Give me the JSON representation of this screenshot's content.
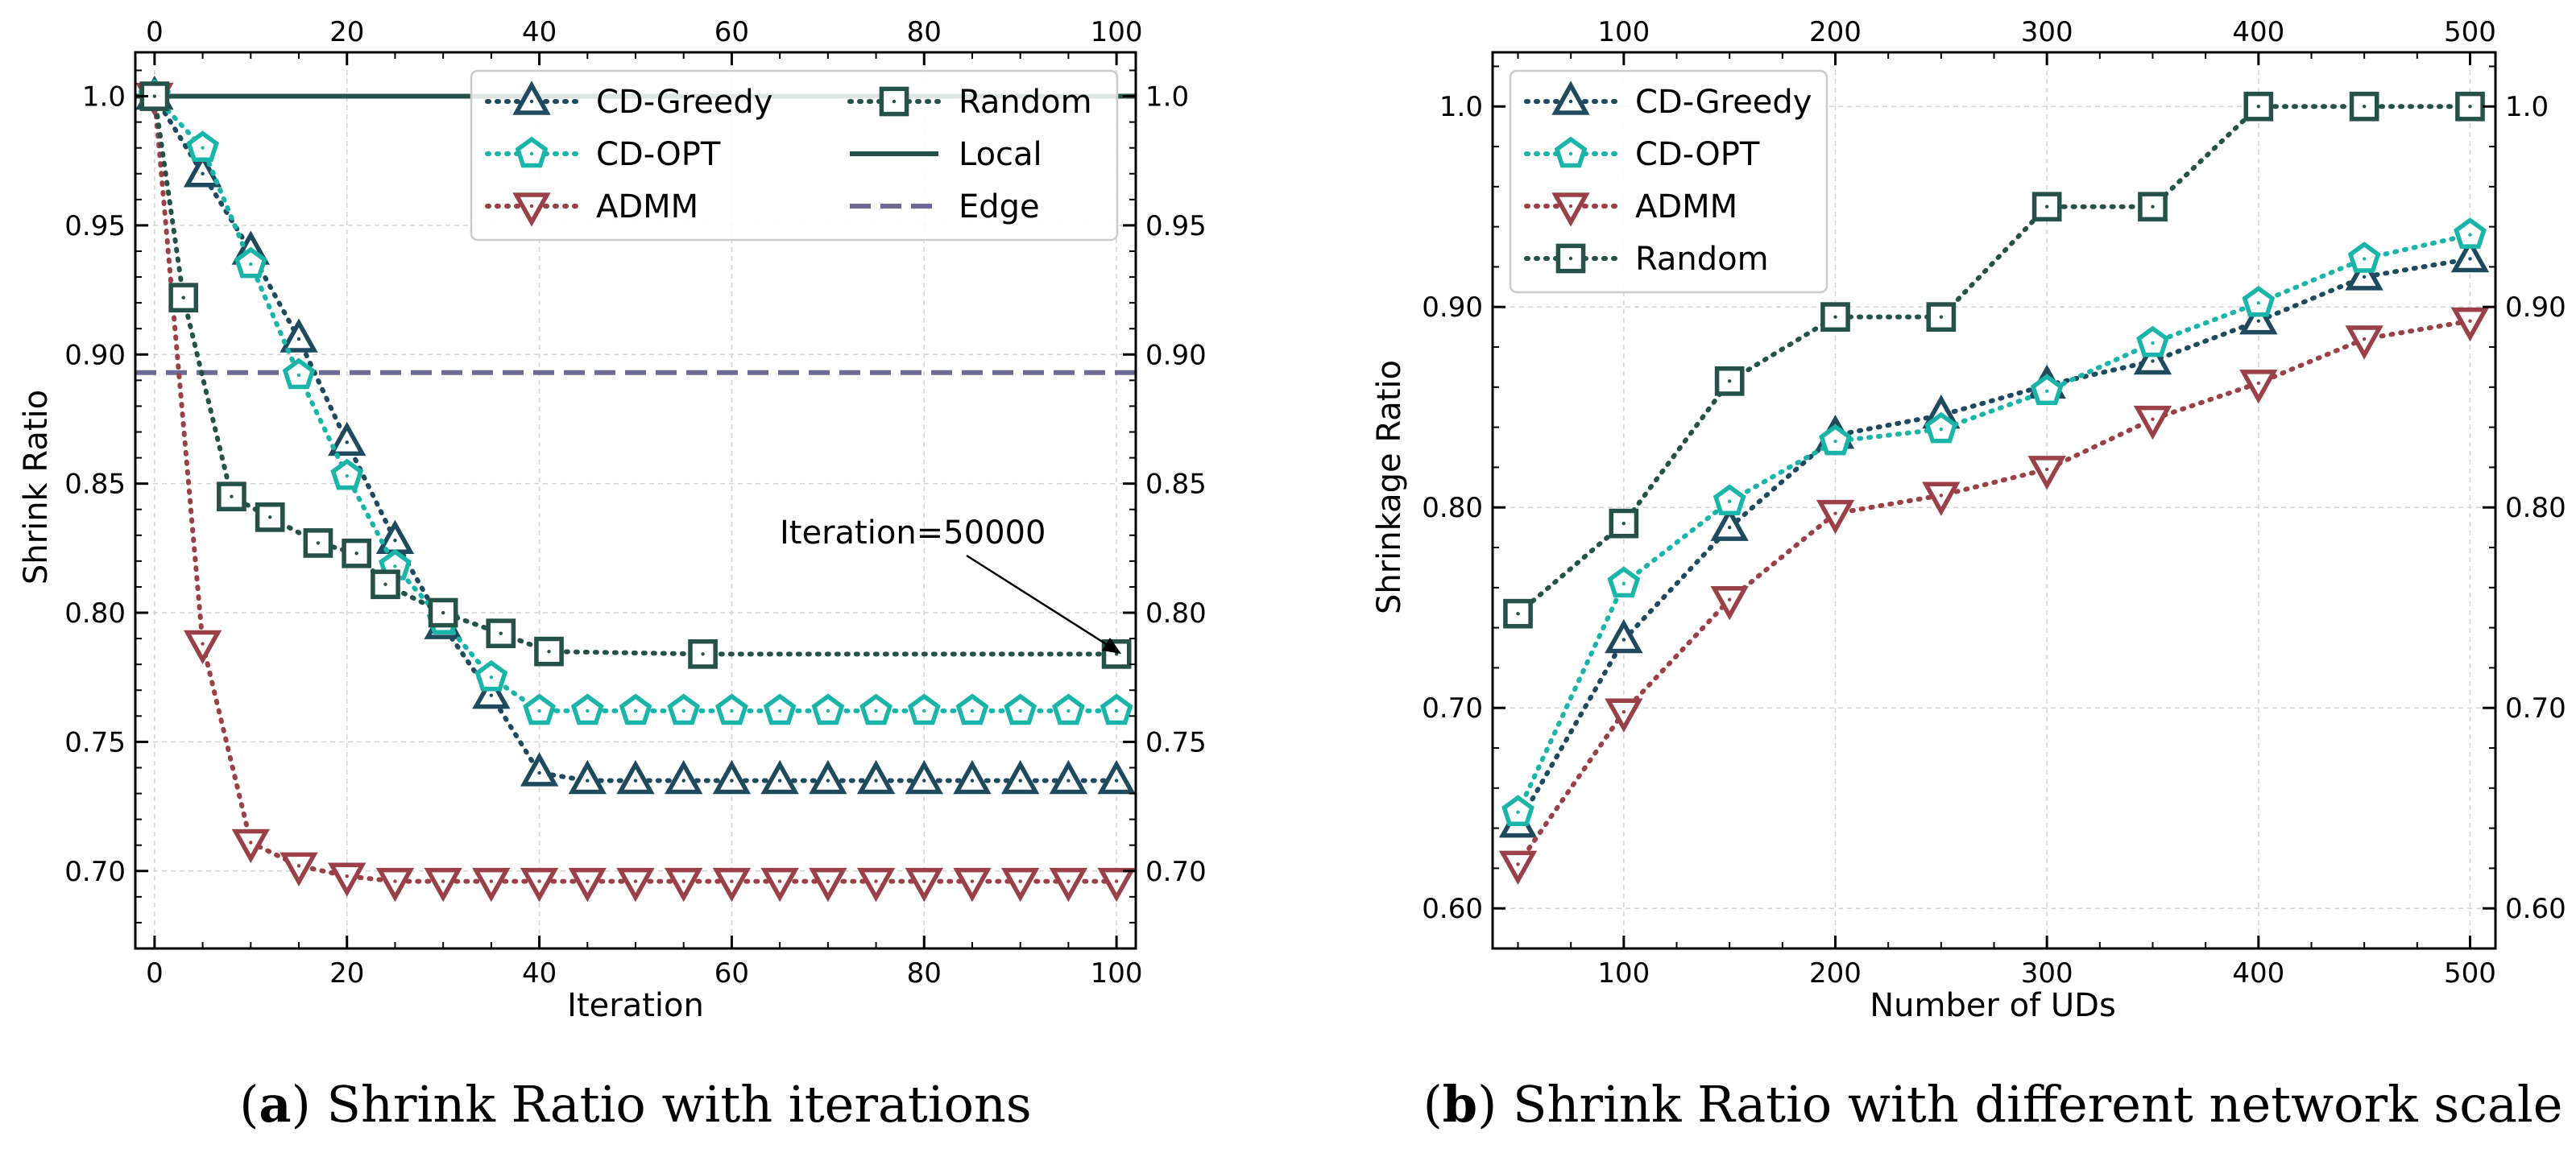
{
  "colors": {
    "cd_greedy": "#1f4a5e",
    "cd_opt": "#1ab5a8",
    "admm": "#9a4048",
    "random": "#265148",
    "local": "#265148",
    "edge": "#6d6a94"
  },
  "chart_data": [
    {
      "type": "line",
      "caption_letter": "a",
      "caption_text": "Shrink Ratio with iterations",
      "xlabel": "Iteration",
      "ylabel": "Shrink Ratio",
      "xlim": [
        -2,
        102
      ],
      "ylim": [
        0.67,
        1.017
      ],
      "xticks": [
        "0",
        "20",
        "40",
        "60",
        "80",
        "100"
      ],
      "xtick_values": [
        0,
        20,
        40,
        60,
        80,
        100
      ],
      "yticks": [
        "0.70",
        "0.75",
        "0.80",
        "0.85",
        "0.90",
        "0.95",
        "1.0"
      ],
      "ytick_values": [
        0.7,
        0.75,
        0.8,
        0.85,
        0.9,
        0.95,
        1.0
      ],
      "grid": true,
      "legend": "top-right",
      "series": [
        {
          "name": "CD-Greedy",
          "marker": "triangle-up",
          "color": "#1f4a5e",
          "x": [
            0,
            5,
            10,
            15,
            20,
            25,
            30,
            35,
            40,
            45,
            50,
            55,
            60,
            65,
            70,
            75,
            80,
            85,
            90,
            95,
            100
          ],
          "values": [
            1.0,
            0.97,
            0.94,
            0.906,
            0.866,
            0.828,
            0.795,
            0.768,
            0.738,
            0.735,
            0.735,
            0.735,
            0.735,
            0.735,
            0.735,
            0.735,
            0.735,
            0.735,
            0.735,
            0.735,
            0.735
          ]
        },
        {
          "name": "CD-OPT",
          "marker": "pentagon",
          "color": "#1ab5a8",
          "x": [
            0,
            5,
            10,
            15,
            20,
            25,
            30,
            35,
            40,
            45,
            50,
            55,
            60,
            65,
            70,
            75,
            80,
            85,
            90,
            95,
            100
          ],
          "values": [
            1.0,
            0.98,
            0.935,
            0.892,
            0.853,
            0.818,
            0.797,
            0.775,
            0.762,
            0.762,
            0.762,
            0.762,
            0.762,
            0.762,
            0.762,
            0.762,
            0.762,
            0.762,
            0.762,
            0.762,
            0.762
          ]
        },
        {
          "name": "ADMM",
          "marker": "triangle-down",
          "color": "#9a4048",
          "x": [
            0,
            5,
            10,
            15,
            20,
            25,
            30,
            35,
            40,
            45,
            50,
            55,
            60,
            65,
            70,
            75,
            80,
            85,
            90,
            95,
            100
          ],
          "values": [
            1.0,
            0.788,
            0.711,
            0.702,
            0.698,
            0.696,
            0.696,
            0.696,
            0.696,
            0.696,
            0.696,
            0.696,
            0.696,
            0.696,
            0.696,
            0.696,
            0.696,
            0.696,
            0.696,
            0.696,
            0.696
          ]
        },
        {
          "name": "Random",
          "marker": "square",
          "color": "#265148",
          "x": [
            0,
            3,
            8,
            12,
            17,
            21,
            24,
            30,
            36,
            41,
            57,
            100
          ],
          "values": [
            1.0,
            0.922,
            0.845,
            0.837,
            0.827,
            0.823,
            0.811,
            0.8,
            0.792,
            0.785,
            0.784,
            0.784
          ]
        }
      ],
      "reference_lines": [
        {
          "name": "Local",
          "value": 1.0,
          "style": "solid",
          "color": "#265148"
        },
        {
          "name": "Edge",
          "value": 0.893,
          "style": "dashed",
          "color": "#6d6a94"
        }
      ],
      "annotation": {
        "text": "Iteration=50000",
        "x": 100,
        "y": 0.784
      }
    },
    {
      "type": "line",
      "caption_letter": "b",
      "caption_text": "Shrink Ratio with different network scale",
      "xlabel": "Number of UDs",
      "ylabel": "Shrinkage Ratio",
      "xlim": [
        38,
        512
      ],
      "ylim": [
        0.58,
        1.027
      ],
      "xticks": [
        "100",
        "200",
        "300",
        "400",
        "500"
      ],
      "xtick_values": [
        100,
        200,
        300,
        400,
        500
      ],
      "yticks": [
        "0.60",
        "0.70",
        "0.80",
        "0.90",
        "1.0"
      ],
      "ytick_values": [
        0.6,
        0.7,
        0.8,
        0.9,
        1.0
      ],
      "grid": true,
      "legend": "top-left",
      "series": [
        {
          "name": "CD-Greedy",
          "marker": "triangle-up",
          "color": "#1f4a5e",
          "x": [
            50,
            100,
            150,
            200,
            250,
            300,
            350,
            400,
            450,
            500
          ],
          "values": [
            0.642,
            0.734,
            0.79,
            0.836,
            0.846,
            0.861,
            0.873,
            0.893,
            0.915,
            0.924
          ]
        },
        {
          "name": "CD-OPT",
          "marker": "pentagon",
          "color": "#1ab5a8",
          "x": [
            50,
            100,
            150,
            200,
            250,
            300,
            350,
            400,
            450,
            500
          ],
          "values": [
            0.648,
            0.762,
            0.803,
            0.833,
            0.839,
            0.858,
            0.882,
            0.902,
            0.924,
            0.936
          ]
        },
        {
          "name": "ADMM",
          "marker": "triangle-down",
          "color": "#9a4048",
          "x": [
            50,
            100,
            150,
            200,
            250,
            300,
            350,
            400,
            450,
            500
          ],
          "values": [
            0.622,
            0.698,
            0.754,
            0.797,
            0.806,
            0.819,
            0.844,
            0.862,
            0.884,
            0.893
          ]
        },
        {
          "name": "Random",
          "marker": "square",
          "color": "#265148",
          "x": [
            50,
            100,
            150,
            200,
            250,
            300,
            350,
            400,
            450,
            500
          ],
          "values": [
            0.747,
            0.792,
            0.863,
            0.895,
            0.895,
            0.95,
            0.95,
            1.0,
            1.0,
            1.0
          ]
        }
      ]
    }
  ]
}
